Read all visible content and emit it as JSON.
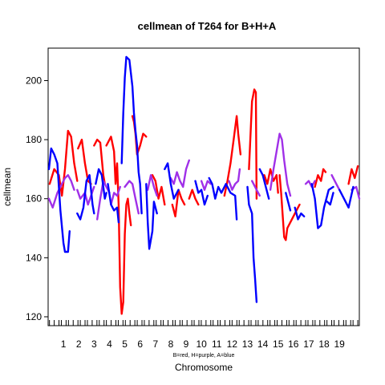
{
  "chart_data": {
    "type": "line",
    "title": "cellmean of T264 for B+H+A",
    "xlabel": "Chromosome",
    "ylabel": "cellmean",
    "note": "B=red, H=purple, A=blue",
    "xlim": [
      0,
      20.3
    ],
    "ylim": [
      117,
      211
    ],
    "y_ticks": [
      120,
      140,
      160,
      180,
      200
    ],
    "x_ticks": [
      "1",
      "2",
      "3",
      "4",
      "5",
      "6",
      "7",
      "8",
      "9",
      "10",
      "11",
      "12",
      "13",
      "14",
      "15",
      "16",
      "17",
      "18",
      "19"
    ],
    "grid": false,
    "legend": "none",
    "series": [
      {
        "name": "B",
        "color": "#ff0000",
        "segments": [
          [
            [
              0.1,
              165
            ],
            [
              0.4,
              170
            ],
            [
              0.7,
              168
            ],
            [
              0.9,
              161
            ],
            [
              1.1,
              170
            ],
            [
              1.3,
              183
            ],
            [
              1.5,
              181
            ],
            [
              1.7,
              172
            ],
            [
              1.9,
              166
            ]
          ],
          [
            [
              1.95,
              177
            ],
            [
              2.2,
              180
            ],
            [
              2.4,
              172
            ],
            [
              2.6,
              166
            ],
            [
              2.8,
              165
            ]
          ],
          [
            [
              3.0,
              178
            ],
            [
              3.2,
              180
            ],
            [
              3.4,
              179
            ],
            [
              3.6,
              168
            ],
            [
              3.7,
              165
            ]
          ],
          [
            [
              3.8,
              178
            ],
            [
              4.1,
              181
            ],
            [
              4.3,
              176
            ],
            [
              4.4,
              165
            ],
            [
              4.5,
              172
            ],
            [
              4.6,
              158
            ],
            [
              4.7,
              130
            ],
            [
              4.8,
              121
            ],
            [
              4.9,
              125
            ],
            [
              5.0,
              148
            ],
            [
              5.1,
              158
            ],
            [
              5.2,
              160
            ],
            [
              5.3,
              155
            ],
            [
              5.4,
              151
            ]
          ],
          [
            [
              5.5,
              188
            ],
            [
              5.6,
              186
            ],
            [
              5.7,
              182
            ],
            [
              5.8,
              175
            ],
            [
              6.0,
              178
            ],
            [
              6.2,
              182
            ],
            [
              6.4,
              181
            ]
          ],
          [
            [
              6.8,
              168
            ],
            [
              7.0,
              166
            ],
            [
              7.2,
              160
            ],
            [
              7.4,
              164
            ],
            [
              7.6,
              158
            ]
          ],
          [
            [
              8.1,
              158
            ],
            [
              8.3,
              154
            ],
            [
              8.5,
              163
            ],
            [
              8.7,
              160
            ],
            [
              8.9,
              158
            ]
          ],
          [
            [
              9.2,
              160
            ],
            [
              9.4,
              163
            ],
            [
              9.6,
              160
            ],
            [
              9.8,
              158
            ]
          ],
          [
            [
              11.5,
              161
            ],
            [
              11.7,
              166
            ],
            [
              11.9,
              172
            ],
            [
              12.1,
              180
            ],
            [
              12.3,
              188
            ],
            [
              12.4,
              182
            ],
            [
              12.55,
              175
            ]
          ],
          [
            [
              13.1,
              170
            ],
            [
              13.3,
              193
            ],
            [
              13.45,
              197
            ],
            [
              13.55,
              196
            ],
            [
              13.6,
              160
            ]
          ],
          [
            [
              14.1,
              168
            ],
            [
              14.3,
              165
            ],
            [
              14.5,
              170
            ],
            [
              14.7,
              166
            ],
            [
              14.9,
              168
            ],
            [
              15.0,
              162
            ]
          ],
          [
            [
              15.1,
              168
            ],
            [
              15.2,
              162
            ],
            [
              15.4,
              147
            ],
            [
              15.5,
              146
            ],
            [
              15.6,
              150
            ],
            [
              15.8,
              152
            ],
            [
              16.0,
              154
            ],
            [
              16.2,
              156
            ],
            [
              16.4,
              158
            ]
          ],
          [
            [
              17.4,
              164
            ],
            [
              17.6,
              168
            ],
            [
              17.8,
              166
            ],
            [
              17.95,
              170
            ],
            [
              18.1,
              169
            ]
          ],
          [
            [
              19.6,
              165
            ],
            [
              19.8,
              170
            ],
            [
              20.0,
              167
            ],
            [
              20.2,
              171
            ]
          ]
        ]
      },
      {
        "name": "H",
        "color": "#a030e8",
        "segments": [
          [
            [
              0.05,
              160
            ],
            [
              0.3,
              157
            ],
            [
              0.6,
              162
            ],
            [
              0.9,
              165
            ],
            [
              1.1,
              167
            ],
            [
              1.3,
              168
            ],
            [
              1.5,
              166
            ],
            [
              1.7,
              163
            ]
          ],
          [
            [
              1.9,
              163
            ],
            [
              2.1,
              160
            ],
            [
              2.4,
              162
            ],
            [
              2.6,
              158
            ],
            [
              2.8,
              161
            ],
            [
              3.0,
              164
            ]
          ],
          [
            [
              3.2,
              153
            ],
            [
              3.4,
              160
            ],
            [
              3.6,
              166
            ],
            [
              3.8,
              164
            ],
            [
              4.0,
              162
            ]
          ],
          [
            [
              4.1,
              158
            ],
            [
              4.3,
              162
            ],
            [
              4.5,
              161
            ],
            [
              4.7,
              164
            ]
          ],
          [
            [
              5.0,
              164
            ],
            [
              5.3,
              166
            ],
            [
              5.5,
              165
            ],
            [
              5.7,
              160
            ],
            [
              5.9,
              155
            ]
          ],
          [
            [
              6.5,
              163
            ],
            [
              6.7,
              168
            ],
            [
              6.9,
              164
            ],
            [
              7.1,
              161
            ]
          ],
          [
            [
              8.0,
              167
            ],
            [
              8.2,
              165
            ],
            [
              8.4,
              169
            ],
            [
              8.6,
              166
            ],
            [
              8.8,
              164
            ],
            [
              9.0,
              170
            ],
            [
              9.2,
              173
            ]
          ],
          [
            [
              10.0,
              166
            ],
            [
              10.2,
              163
            ],
            [
              10.4,
              166
            ],
            [
              10.6,
              165
            ]
          ],
          [
            [
              11.8,
              166
            ],
            [
              12.0,
              163
            ],
            [
              12.2,
              165
            ],
            [
              12.4,
              166
            ],
            [
              12.5,
              170
            ]
          ],
          [
            [
              13.3,
              166
            ],
            [
              13.6,
              163
            ],
            [
              13.8,
              161
            ]
          ],
          [
            [
              14.5,
              163
            ],
            [
              14.7,
              170
            ],
            [
              14.9,
              176
            ],
            [
              15.1,
              182
            ],
            [
              15.25,
              180
            ],
            [
              15.4,
              173
            ],
            [
              15.6,
              165
            ],
            [
              15.8,
              161
            ]
          ],
          [
            [
              16.8,
              165
            ],
            [
              17.0,
              166
            ],
            [
              17.2,
              164
            ],
            [
              17.4,
              166
            ]
          ],
          [
            [
              18.5,
              168
            ],
            [
              18.8,
              165
            ],
            [
              19.0,
              163
            ]
          ],
          [
            [
              19.8,
              163
            ],
            [
              20.1,
              164
            ],
            [
              20.3,
              160
            ]
          ]
        ]
      },
      {
        "name": "A",
        "color": "#0000ff",
        "segments": [
          [
            [
              0.05,
              170
            ],
            [
              0.2,
              177
            ],
            [
              0.4,
              175
            ],
            [
              0.6,
              172
            ],
            [
              0.8,
              156
            ],
            [
              1.0,
              145
            ],
            [
              1.1,
              142
            ],
            [
              1.3,
              142
            ],
            [
              1.4,
              149
            ]
          ],
          [
            [
              1.9,
              155
            ],
            [
              2.1,
              153
            ],
            [
              2.3,
              157
            ],
            [
              2.5,
              166
            ],
            [
              2.7,
              168
            ],
            [
              2.9,
              158
            ],
            [
              3.0,
              155
            ]
          ],
          [
            [
              3.1,
              165
            ],
            [
              3.3,
              170
            ],
            [
              3.5,
              168
            ],
            [
              3.7,
              160
            ],
            [
              3.8,
              162
            ]
          ],
          [
            [
              3.9,
              165
            ],
            [
              4.1,
              158
            ],
            [
              4.3,
              156
            ],
            [
              4.5,
              157
            ],
            [
              4.6,
              152
            ]
          ],
          [
            [
              4.8,
              172
            ],
            [
              4.9,
              189
            ],
            [
              5.0,
              201
            ],
            [
              5.1,
              208
            ],
            [
              5.3,
              207
            ],
            [
              5.5,
              198
            ],
            [
              5.6,
              189
            ],
            [
              5.7,
              183
            ],
            [
              5.8,
              178
            ],
            [
              5.9,
              169
            ],
            [
              6.0,
              165
            ],
            [
              6.1,
              155
            ]
          ],
          [
            [
              6.4,
              165
            ],
            [
              6.5,
              152
            ],
            [
              6.6,
              143
            ],
            [
              6.8,
              149
            ],
            [
              6.9,
              159
            ],
            [
              7.1,
              155
            ]
          ],
          [
            [
              7.6,
              170
            ],
            [
              7.8,
              172
            ],
            [
              8.0,
              165
            ],
            [
              8.2,
              160
            ],
            [
              8.5,
              163
            ]
          ],
          [
            [
              9.6,
              166
            ],
            [
              9.8,
              162
            ],
            [
              10.0,
              163
            ],
            [
              10.2,
              158
            ],
            [
              10.4,
              161
            ]
          ],
          [
            [
              10.5,
              167
            ],
            [
              10.7,
              165
            ],
            [
              10.9,
              160
            ],
            [
              11.1,
              164
            ],
            [
              11.3,
              162
            ],
            [
              11.6,
              165
            ],
            [
              11.9,
              162
            ],
            [
              12.2,
              161
            ],
            [
              12.3,
              153
            ]
          ],
          [
            [
              13.0,
              164
            ],
            [
              13.1,
              158
            ],
            [
              13.3,
              155
            ],
            [
              13.4,
              140
            ],
            [
              13.5,
              133
            ],
            [
              13.6,
              125
            ]
          ],
          [
            [
              13.8,
              170
            ],
            [
              14.0,
              168
            ],
            [
              14.2,
              164
            ],
            [
              14.4,
              160
            ]
          ],
          [
            [
              15.5,
              162
            ],
            [
              15.7,
              158
            ],
            [
              15.8,
              156
            ]
          ],
          [
            [
              16.1,
              157
            ],
            [
              16.3,
              153
            ],
            [
              16.5,
              155
            ],
            [
              16.7,
              154
            ]
          ],
          [
            [
              17.2,
              165
            ],
            [
              17.4,
              160
            ],
            [
              17.5,
              155
            ],
            [
              17.6,
              150
            ],
            [
              17.8,
              151
            ],
            [
              18.0,
              157
            ],
            [
              18.3,
              163
            ],
            [
              18.6,
              164
            ]
          ],
          [
            [
              18.2,
              159
            ],
            [
              18.4,
              158
            ],
            [
              18.6,
              162
            ]
          ],
          [
            [
              19.0,
              163
            ],
            [
              19.3,
              160
            ],
            [
              19.6,
              157
            ],
            [
              19.9,
              164
            ]
          ]
        ]
      }
    ]
  }
}
